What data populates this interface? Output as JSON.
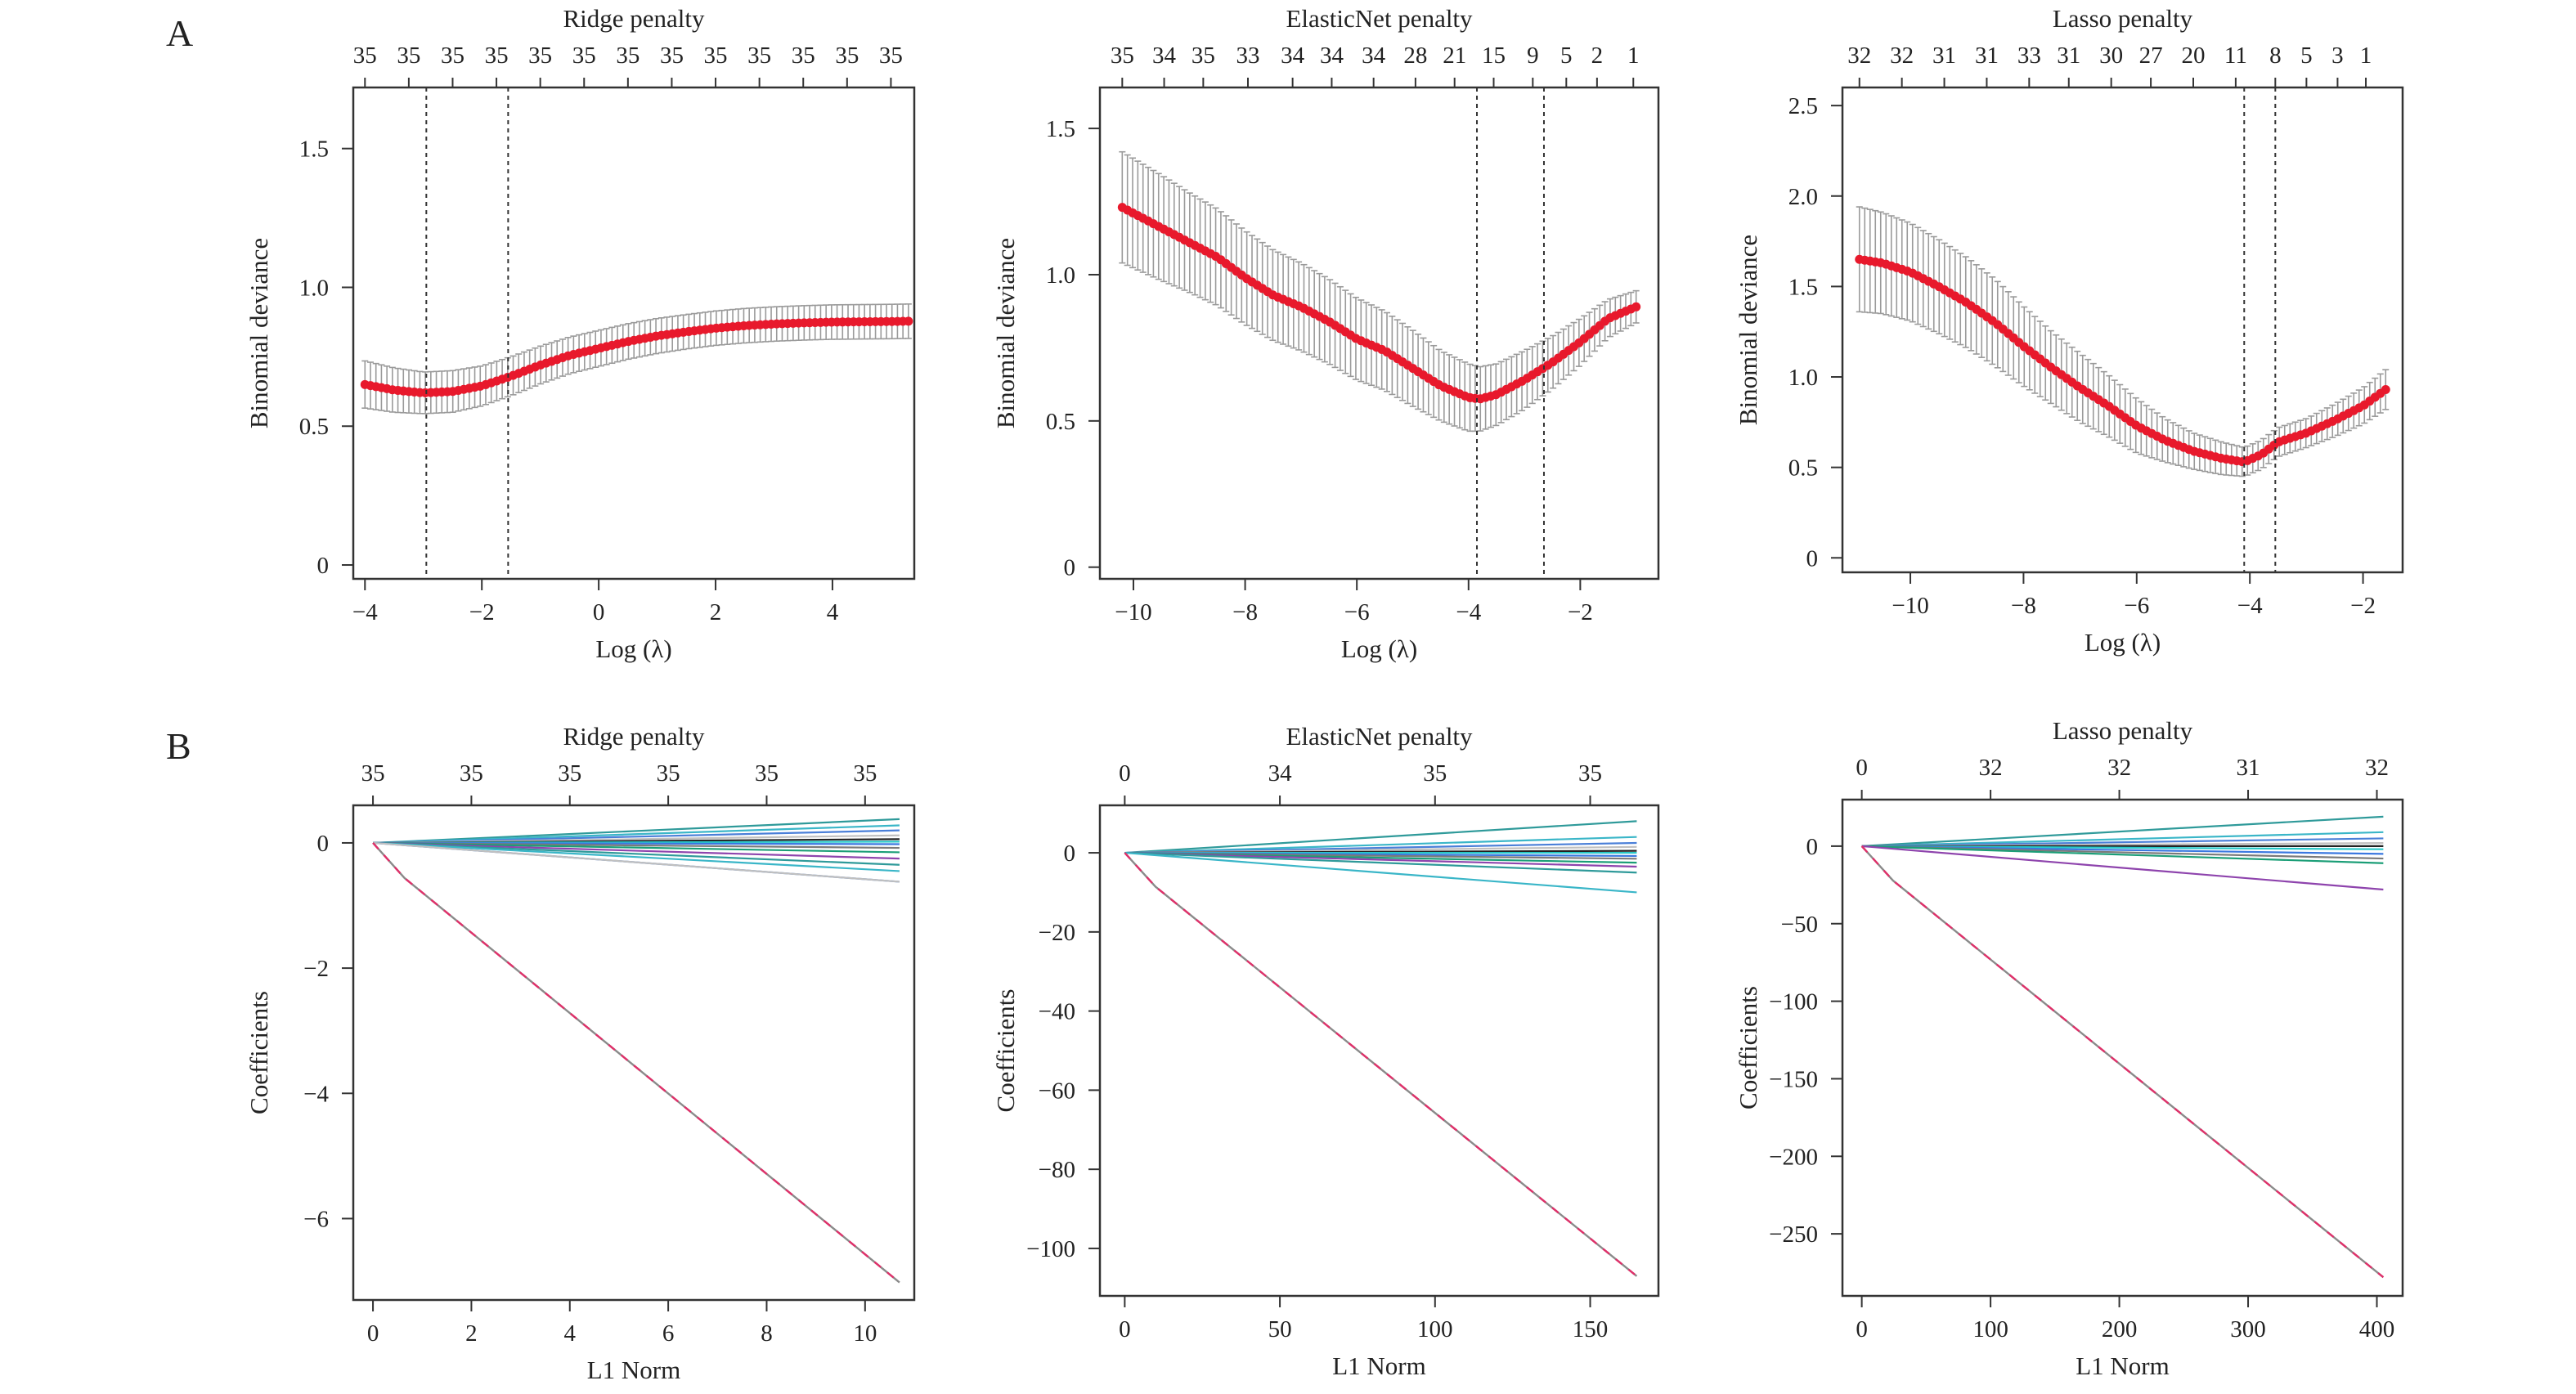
{
  "panels": {
    "A": "A",
    "B": "B"
  },
  "colors": {
    "cv_line": "#e8192c",
    "error_bar": "#9a9a9a",
    "ref_line": "#333333",
    "axis": "#333333",
    "coef_palette": [
      "#2f9a9a",
      "#3ab6c8",
      "#4a7fd8",
      "#c0c0c0",
      "#222222",
      "#28c8c8",
      "#3a78e0",
      "#7a7a7a",
      "#1b9e77",
      "#8e44ad"
    ],
    "coef_main_red": "#e0306a",
    "coef_main_grey": "#8a8a8a"
  },
  "chart_data": [
    {
      "type": "line",
      "panel": "A",
      "title": "Ridge penalty",
      "xlabel": "Log (λ)",
      "ylabel": "Binomial deviance",
      "xlim": [
        -4.2,
        5.4
      ],
      "ylim": [
        -0.05,
        1.72
      ],
      "xticks": [
        -4,
        -2,
        0,
        2,
        4
      ],
      "yticks": [
        0,
        0.5,
        1.0,
        1.5
      ],
      "ytick_labels": [
        "0",
        "0.5",
        "1.0",
        "1.5"
      ],
      "top_ticks": [
        -4.0,
        -3.25,
        -2.5,
        -1.75,
        -1.0,
        -0.25,
        0.5,
        1.25,
        2.0,
        2.75,
        3.5,
        4.25,
        5.0
      ],
      "top_labels": [
        "35",
        "35",
        "35",
        "35",
        "35",
        "35",
        "35",
        "35",
        "35",
        "35",
        "35",
        "35",
        "35"
      ],
      "vlines": [
        -2.95,
        -1.55
      ],
      "curve_x": [
        -4.0,
        -3.5,
        -3.0,
        -2.5,
        -2.0,
        -1.5,
        -1.0,
        -0.5,
        0.0,
        0.5,
        1.0,
        1.5,
        2.0,
        2.5,
        3.0,
        3.5,
        4.0,
        4.5,
        5.0,
        5.3
      ],
      "curve_y": [
        0.65,
        0.63,
        0.62,
        0.625,
        0.645,
        0.68,
        0.72,
        0.755,
        0.78,
        0.805,
        0.825,
        0.84,
        0.853,
        0.862,
        0.868,
        0.872,
        0.875,
        0.876,
        0.877,
        0.878
      ],
      "err": [
        0.085,
        0.08,
        0.075,
        0.075,
        0.072,
        0.07,
        0.068,
        0.066,
        0.065,
        0.064,
        0.063,
        0.062,
        0.062,
        0.062,
        0.062,
        0.062,
        0.062,
        0.062,
        0.062,
        0.062
      ]
    },
    {
      "type": "line",
      "panel": "A",
      "title": "ElasticNet penalty",
      "xlabel": "Log (λ)",
      "ylabel": "Binomial deviance",
      "xlim": [
        -10.6,
        -0.6
      ],
      "ylim": [
        -0.04,
        1.64
      ],
      "xticks": [
        -10,
        -8,
        -6,
        -4,
        -2
      ],
      "yticks": [
        0,
        0.5,
        1.0,
        1.5
      ],
      "ytick_labels": [
        "0",
        "0.5",
        "1.0",
        "1.5"
      ],
      "top_ticks": [
        -10.2,
        -9.45,
        -8.75,
        -7.95,
        -7.15,
        -6.45,
        -5.7,
        -4.95,
        -4.25,
        -3.55,
        -2.85,
        -2.25,
        -1.7,
        -1.05
      ],
      "top_labels": [
        "35",
        "34",
        "35",
        "33",
        "34",
        "34",
        "34",
        "28",
        "21",
        "15",
        "9",
        "5",
        "2",
        "1"
      ],
      "vlines": [
        -3.85,
        -2.65
      ],
      "curve_x": [
        -10.2,
        -9.5,
        -9.0,
        -8.5,
        -8.0,
        -7.5,
        -7.0,
        -6.5,
        -6.0,
        -5.5,
        -5.0,
        -4.5,
        -4.0,
        -3.8,
        -3.5,
        -3.0,
        -2.5,
        -2.0,
        -1.5,
        -1.0
      ],
      "curve_y": [
        1.23,
        1.16,
        1.11,
        1.06,
        0.99,
        0.93,
        0.89,
        0.84,
        0.78,
        0.74,
        0.68,
        0.62,
        0.58,
        0.575,
        0.59,
        0.64,
        0.7,
        0.77,
        0.85,
        0.89
      ],
      "err": [
        0.19,
        0.18,
        0.17,
        0.165,
        0.16,
        0.155,
        0.15,
        0.145,
        0.14,
        0.135,
        0.13,
        0.12,
        0.115,
        0.11,
        0.105,
        0.1,
        0.09,
        0.08,
        0.065,
        0.055
      ]
    },
    {
      "type": "line",
      "panel": "A",
      "title": "Lasso penalty",
      "xlabel": "Log (λ)",
      "ylabel": "Binomial deviance",
      "xlim": [
        -11.2,
        -1.3
      ],
      "ylim": [
        -0.08,
        2.6
      ],
      "xticks": [
        -10,
        -8,
        -6,
        -4,
        -2
      ],
      "yticks": [
        0,
        0.5,
        1.0,
        1.5,
        2.0,
        2.5
      ],
      "ytick_labels": [
        "0",
        "0.5",
        "1.0",
        "1.5",
        "2.0",
        "2.5"
      ],
      "top_ticks": [
        -10.9,
        -10.15,
        -9.4,
        -8.65,
        -7.9,
        -7.2,
        -6.45,
        -5.75,
        -5.0,
        -4.25,
        -3.55,
        -3.0,
        -2.45,
        -1.95
      ],
      "top_labels": [
        "32",
        "32",
        "31",
        "31",
        "33",
        "31",
        "30",
        "27",
        "20",
        "11",
        "8",
        "5",
        "3",
        "1"
      ],
      "vlines": [
        -4.1,
        -3.55
      ],
      "curve_x": [
        -10.9,
        -10.5,
        -10.0,
        -9.5,
        -9.0,
        -8.5,
        -8.0,
        -7.5,
        -7.0,
        -6.5,
        -6.0,
        -5.5,
        -5.0,
        -4.5,
        -4.1,
        -3.8,
        -3.5,
        -3.0,
        -2.5,
        -2.0,
        -1.6
      ],
      "curve_y": [
        1.65,
        1.63,
        1.58,
        1.5,
        1.41,
        1.3,
        1.17,
        1.05,
        0.94,
        0.84,
        0.73,
        0.65,
        0.59,
        0.55,
        0.53,
        0.57,
        0.64,
        0.69,
        0.76,
        0.84,
        0.93
      ],
      "err": [
        0.29,
        0.28,
        0.27,
        0.26,
        0.25,
        0.24,
        0.22,
        0.2,
        0.19,
        0.17,
        0.15,
        0.12,
        0.1,
        0.09,
        0.08,
        0.08,
        0.08,
        0.08,
        0.09,
        0.1,
        0.11
      ]
    },
    {
      "type": "line",
      "panel": "B",
      "title": "Ridge penalty",
      "xlabel": "L1 Norm",
      "ylabel": "Coefficients",
      "xlim": [
        -0.4,
        11.0
      ],
      "ylim": [
        -7.3,
        0.6
      ],
      "xticks": [
        0,
        2,
        4,
        6,
        8,
        10
      ],
      "yticks": [
        0,
        -2,
        -4,
        -6
      ],
      "ytick_labels": [
        "0",
        "−2",
        "−4",
        "−6"
      ],
      "top_ticks": [
        0,
        2,
        4,
        6,
        8,
        10
      ],
      "top_labels": [
        "35",
        "35",
        "35",
        "35",
        "35",
        "35"
      ],
      "x_end": 10.7,
      "series_end": [
        0.38,
        0.28,
        0.2,
        0.12,
        0.06,
        0.02,
        -0.02,
        -0.08,
        -0.15,
        -0.25,
        -0.35,
        -0.45,
        -0.62,
        -0.62
      ],
      "main_end": -7.02
    },
    {
      "type": "line",
      "panel": "B",
      "title": "ElasticNet penalty",
      "xlabel": "L1 Norm",
      "ylabel": "Coefficients",
      "xlim": [
        -8,
        172
      ],
      "ylim": [
        -112,
        12
      ],
      "xticks": [
        0,
        50,
        100,
        150
      ],
      "yticks": [
        0,
        -20,
        -40,
        -60,
        -80,
        -100
      ],
      "ytick_labels": [
        "0",
        "−20",
        "−40",
        "−60",
        "−80",
        "−100"
      ],
      "top_ticks": [
        0,
        50,
        100,
        150
      ],
      "top_labels": [
        "0",
        "34",
        "35",
        "35"
      ],
      "x_end": 165,
      "series_end": [
        8.0,
        4.0,
        2.5,
        1.5,
        0.5,
        0.0,
        -0.8,
        -1.5,
        -2.5,
        -3.5,
        -5.0,
        -10.0
      ],
      "main_end": -107
    },
    {
      "type": "line",
      "panel": "B",
      "title": "Lasso penalty",
      "xlabel": "L1 Norm",
      "ylabel": "Coefficients",
      "xlim": [
        -15,
        420
      ],
      "ylim": [
        -290,
        30
      ],
      "xticks": [
        0,
        100,
        200,
        300,
        400
      ],
      "yticks": [
        0,
        -50,
        -100,
        -150,
        -200,
        -250
      ],
      "ytick_labels": [
        "0",
        "−50",
        "−100",
        "−150",
        "−200",
        "−250"
      ],
      "top_ticks": [
        0,
        100,
        200,
        300,
        400
      ],
      "top_labels": [
        "0",
        "32",
        "32",
        "31",
        "32"
      ],
      "x_end": 405,
      "series_end": [
        19.0,
        9.0,
        5.0,
        2.0,
        0.0,
        -2.0,
        -5.0,
        -8.0,
        -11.0,
        -28.0
      ],
      "main_end": -278
    }
  ]
}
